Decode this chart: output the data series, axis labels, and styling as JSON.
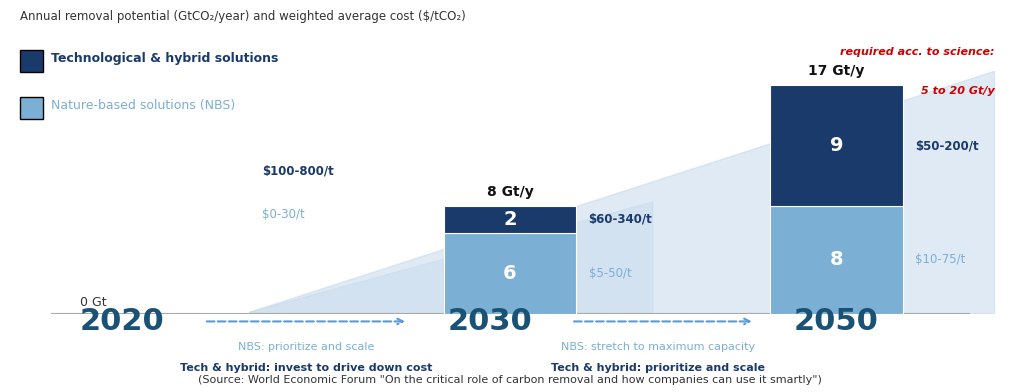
{
  "title": "Annual removal potential (GtCO₂/year) and weighted average cost ($/tCO₂)",
  "legend_tech": "Technological & hybrid solutions",
  "legend_nbs": "Nature-based solutions (NBS)",
  "color_tech": "#1a3a6b",
  "color_nbs": "#7bafd4",
  "color_nbs_light": "#c5d9ed",
  "background": "#ffffff",
  "years": [
    2020,
    2030,
    2050
  ],
  "nbs_values": [
    0,
    6,
    8
  ],
  "tech_values": [
    0,
    2,
    9
  ],
  "bar_total_labels": [
    "",
    "8 Gt/y",
    "17 Gt/y"
  ],
  "nbs_labels": [
    "",
    "6",
    "8"
  ],
  "tech_labels": [
    "",
    "2",
    "9"
  ],
  "cost_tech": [
    "$100-800/t",
    "$60-340/t",
    "$50-200/t"
  ],
  "cost_nbs": [
    "$0-30/t",
    "$5-50/t",
    "$10-75/t"
  ],
  "zero_label": "0 Gt",
  "required_line1": "required acc. to science:",
  "required_line2": "5 to 20 Gt/y",
  "required_color": "#cc0000",
  "year_color": "#1a5276",
  "arrow_color": "#5b9bd5",
  "nbs1_label": "NBS: prioritize and scale",
  "tech1_label": "Tech & hybrid: invest to drive down cost",
  "nbs2_label": "NBS: stretch to maximum capacity",
  "tech2_label": "Tech & hybrid: prioritize and scale",
  "source_label": "(Source: World Economic Forum \"On the critical role of carbon removal and how companies can use it smartly\")",
  "bar_positions": [
    0.18,
    0.5,
    0.82
  ],
  "bar_width": 0.13,
  "max_val": 20.0
}
